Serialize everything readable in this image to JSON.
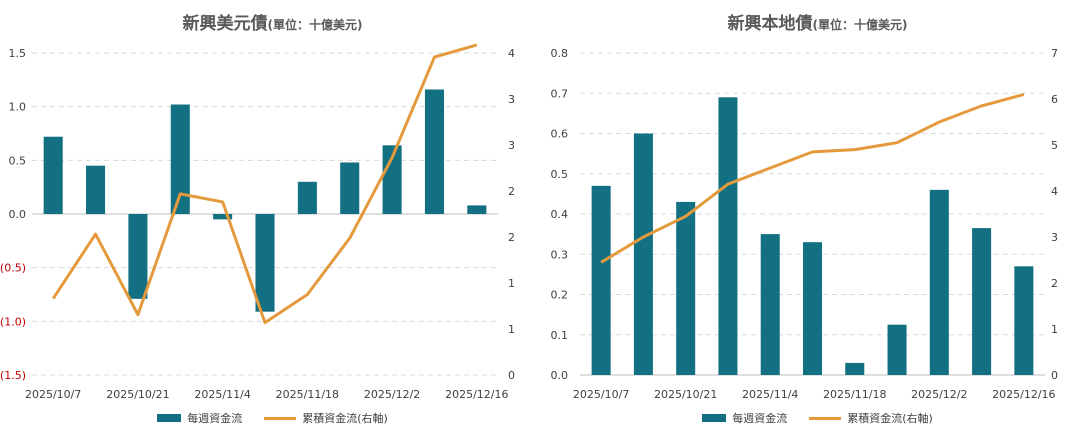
{
  "legend": {
    "bar_label": "每週資金流",
    "line_label": "累積資金流(右軸)"
  },
  "colors": {
    "bar": "#136f82",
    "line": "#e49a3c",
    "negative_tick": "#c00000",
    "grid": "#d9d9d9"
  },
  "chart_data": [
    {
      "type": "bar",
      "title": "新興美元債",
      "subtitle": "(單位：十億美元)",
      "x_tick_labels": [
        "2025/10/7",
        "2025/10/21",
        "2025/11/4",
        "2025/11/18",
        "2025/12/2",
        "2025/12/16"
      ],
      "y_ticks": [
        "1.5",
        "1.0",
        "0.5",
        "0.0",
        "(0.5)",
        "(1.0)",
        "(1.5)"
      ],
      "y2_ticks": [
        "4",
        "3",
        "3",
        "2",
        "2",
        "1",
        "1",
        "0"
      ],
      "ylim": [
        -1.5,
        1.5
      ],
      "y2lim": [
        0,
        4
      ],
      "grid": true,
      "legend_position": "bottom",
      "series": [
        {
          "name": "每週資金流",
          "type": "bar",
          "values": [
            0.72,
            0.45,
            -0.79,
            1.02,
            -0.05,
            -0.91,
            0.3,
            0.48,
            0.64,
            1.16,
            0.08
          ]
        },
        {
          "name": "累積資金流(右軸)",
          "type": "line",
          "axis": "right",
          "values": [
            0.95,
            1.75,
            0.75,
            2.25,
            2.15,
            0.65,
            1.0,
            1.7,
            2.7,
            3.95,
            4.1
          ]
        }
      ]
    },
    {
      "type": "bar",
      "title": "新興本地債",
      "subtitle": "(單位：十億美元)",
      "x_tick_labels": [
        "2025/10/7",
        "2025/10/21",
        "2025/11/4",
        "2025/11/18",
        "2025/12/2",
        "2025/12/16"
      ],
      "y_ticks": [
        "0.8",
        "0.7",
        "0.6",
        "0.5",
        "0.4",
        "0.3",
        "0.2",
        "0.1",
        "0.0"
      ],
      "y2_ticks": [
        "7",
        "6",
        "5",
        "4",
        "3",
        "2",
        "1",
        "0"
      ],
      "ylim": [
        0,
        0.8
      ],
      "y2lim": [
        0,
        7
      ],
      "grid": true,
      "legend_position": "bottom",
      "series": [
        {
          "name": "每週資金流",
          "type": "bar",
          "values": [
            0.47,
            0.6,
            0.43,
            0.69,
            0.35,
            0.33,
            0.03,
            0.125,
            0.46,
            0.365,
            0.27
          ]
        },
        {
          "name": "累積資金流(右軸)",
          "type": "line",
          "axis": "right",
          "values": [
            2.45,
            3.0,
            3.45,
            4.15,
            4.5,
            4.85,
            4.9,
            5.05,
            5.5,
            5.85,
            6.1
          ]
        }
      ]
    }
  ]
}
